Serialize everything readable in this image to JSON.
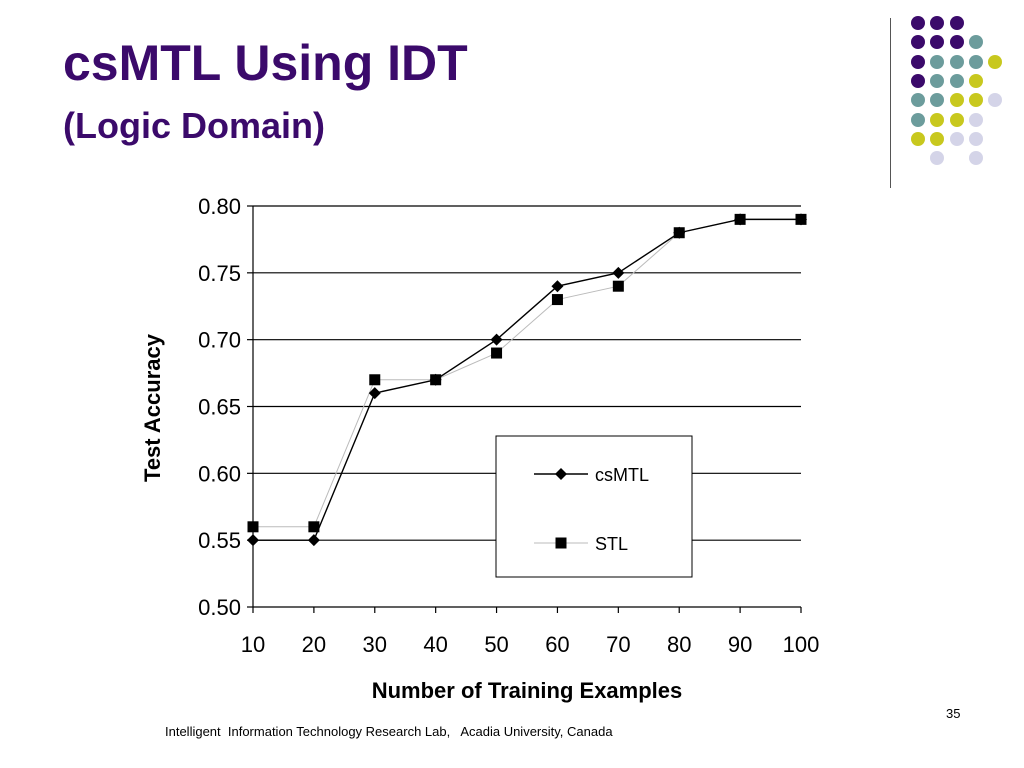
{
  "slide": {
    "title": "csMTL Using IDT",
    "subtitle": "(Logic Domain)",
    "footer": "Intelligent  Information Technology Research Lab,   Acadia University, Canada",
    "page_number": "35"
  },
  "decor": {
    "colors": {
      "purple": "#3b0a6b",
      "teal": "#6c9c9c",
      "yellow": "#c8c81e",
      "lavender": "#d4d4e8"
    },
    "dot_grid": [
      [
        "purple",
        "purple",
        "purple",
        null,
        null
      ],
      [
        "purple",
        "purple",
        "purple",
        "teal",
        null
      ],
      [
        "purple",
        "teal",
        "teal",
        "teal",
        "yellow"
      ],
      [
        "purple",
        "teal",
        "teal",
        "yellow",
        null
      ],
      [
        "teal",
        "teal",
        "yellow",
        "yellow",
        "lavender"
      ],
      [
        "teal",
        "yellow",
        "yellow",
        "lavender",
        null
      ],
      [
        "yellow",
        "yellow",
        "lavender",
        "lavender",
        null
      ],
      [
        null,
        "lavender",
        null,
        "lavender",
        null
      ]
    ]
  },
  "chart_data": {
    "type": "line",
    "title": "",
    "xlabel": "Number of Training Examples",
    "ylabel": "Test Accuracy",
    "x": [
      10,
      20,
      30,
      40,
      50,
      60,
      70,
      80,
      90,
      100
    ],
    "xticks": [
      "10",
      "20",
      "30",
      "40",
      "50",
      "60",
      "70",
      "80",
      "90",
      "100"
    ],
    "ylim": [
      0.5,
      0.8
    ],
    "yticks": [
      "0.50",
      "0.55",
      "0.60",
      "0.65",
      "0.70",
      "0.75",
      "0.80"
    ],
    "grid": "horizontal",
    "legend_position": "center-right",
    "series": [
      {
        "name": "csMTL",
        "marker": "diamond",
        "color": "#000000",
        "values": [
          0.55,
          0.55,
          0.66,
          0.67,
          0.7,
          0.74,
          0.75,
          0.78,
          0.79,
          0.79
        ]
      },
      {
        "name": "STL",
        "marker": "square",
        "color": "#bbbbbb",
        "values": [
          0.56,
          0.56,
          0.67,
          0.67,
          0.69,
          0.73,
          0.74,
          0.78,
          0.79,
          0.79
        ]
      }
    ]
  }
}
